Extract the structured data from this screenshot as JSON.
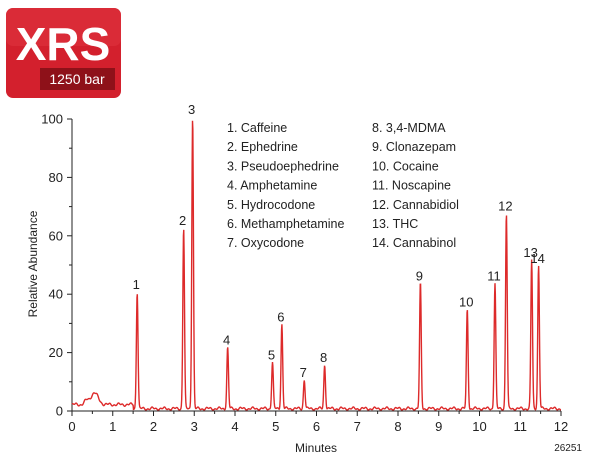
{
  "badge": {
    "title": "XRS",
    "subtitle": "1250 bar",
    "colors": {
      "fill": "#d3202d",
      "dark": "#8e1119"
    }
  },
  "figure_id": "26251",
  "colors": {
    "trace": "#dd2a2a",
    "axis": "#222222"
  },
  "chart_data": {
    "type": "line",
    "xlabel": "Minutes",
    "ylabel": "Relative Abundance",
    "xlim": [
      0,
      12
    ],
    "ylim": [
      0,
      100
    ],
    "xticks": [
      "0",
      "1",
      "2",
      "3",
      "4",
      "5",
      "6",
      "7",
      "8",
      "9",
      "10",
      "11",
      "12"
    ],
    "yticks": [
      "0",
      "20",
      "40",
      "60",
      "80",
      "100"
    ],
    "peaks": [
      {
        "label": "1",
        "compound": "Caffeine",
        "rt": 1.6,
        "height": 40
      },
      {
        "label": "2",
        "compound": "Ephedrine",
        "rt": 2.74,
        "height": 62
      },
      {
        "label": "3",
        "compound": "Pseudoephedrine",
        "rt": 2.96,
        "height": 100
      },
      {
        "label": "4",
        "compound": "Amphetamine",
        "rt": 3.82,
        "height": 21
      },
      {
        "label": "5",
        "compound": "Hydrocodone",
        "rt": 4.92,
        "height": 16
      },
      {
        "label": "6",
        "compound": "Methamphetamine",
        "rt": 5.15,
        "height": 29
      },
      {
        "label": "7",
        "compound": "Oxycodone",
        "rt": 5.7,
        "height": 10
      },
      {
        "label": "8",
        "compound": "3,4-MDMA",
        "rt": 6.2,
        "height": 15
      },
      {
        "label": "9",
        "compound": "Clonazepam",
        "rt": 8.55,
        "height": 43
      },
      {
        "label": "10",
        "compound": "Cocaine",
        "rt": 9.7,
        "height": 34
      },
      {
        "label": "11",
        "compound": "Noscapine",
        "rt": 10.38,
        "height": 43
      },
      {
        "label": "12",
        "compound": "Cannabidiol",
        "rt": 10.66,
        "height": 67
      },
      {
        "label": "13",
        "compound": "THC",
        "rt": 11.28,
        "height": 51
      },
      {
        "label": "14",
        "compound": "Cannabinol",
        "rt": 11.45,
        "height": 49
      }
    ],
    "legend_left": [
      "1. Caffeine",
      "2. Ephedrine",
      "3. Pseudoephedrine",
      "4. Amphetamine",
      "5. Hydrocodone",
      "6. Methamphetamine",
      "7. Oxycodone"
    ],
    "legend_right": [
      "8. 3,4-MDMA",
      "9. Clonazepam",
      "10. Cocaine",
      "11. Noscapine",
      "12. Cannabidiol",
      "13. THC",
      "14. Cannabinol"
    ]
  }
}
